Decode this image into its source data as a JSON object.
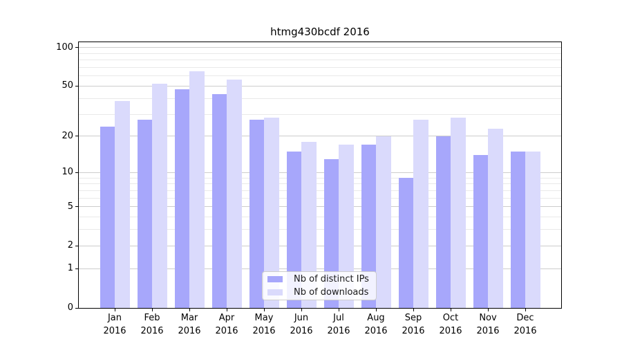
{
  "chart_data": {
    "type": "bar",
    "title": "htmg430bcdf 2016",
    "categories": [
      "Jan 2016",
      "Feb 2016",
      "Mar 2016",
      "Apr 2016",
      "May 2016",
      "Jun 2016",
      "Jul 2016",
      "Aug 2016",
      "Sep 2016",
      "Oct 2016",
      "Nov 2016",
      "Dec 2016"
    ],
    "x_tick_month_labels": [
      "Jan",
      "Feb",
      "Mar",
      "Apr",
      "May",
      "Jun",
      "Jul",
      "Aug",
      "Sep",
      "Oct",
      "Nov",
      "Dec"
    ],
    "x_tick_year_label": "2016",
    "series": [
      {
        "name": "Nb of distinct IPs",
        "color": "#a7a7fb",
        "values": [
          24,
          27,
          47,
          43,
          27,
          15,
          13,
          17,
          9,
          20,
          14,
          15
        ]
      },
      {
        "name": "Nb of downloads",
        "color": "#dadafc",
        "values": [
          38,
          52,
          65,
          56,
          28,
          18,
          17,
          20,
          27,
          28,
          23,
          15
        ]
      }
    ],
    "yscale": "log10(1+y)",
    "ylim": [
      0,
      110
    ],
    "y_major_ticks": [
      0,
      1,
      2,
      5,
      10,
      20,
      50,
      100
    ],
    "y_tick_labels": [
      "0",
      "1",
      "2",
      "5",
      "10",
      "20",
      "50",
      "100"
    ],
    "y_minor_gridlines": [
      3,
      4,
      6,
      7,
      8,
      9,
      30,
      40,
      60,
      70,
      80,
      90
    ],
    "grid": true,
    "legend_position": "lower center",
    "colors": {
      "grid_major": "#cccccc",
      "grid_minor": "#e9e9e9",
      "axis": "#000000",
      "background": "#ffffff"
    }
  }
}
